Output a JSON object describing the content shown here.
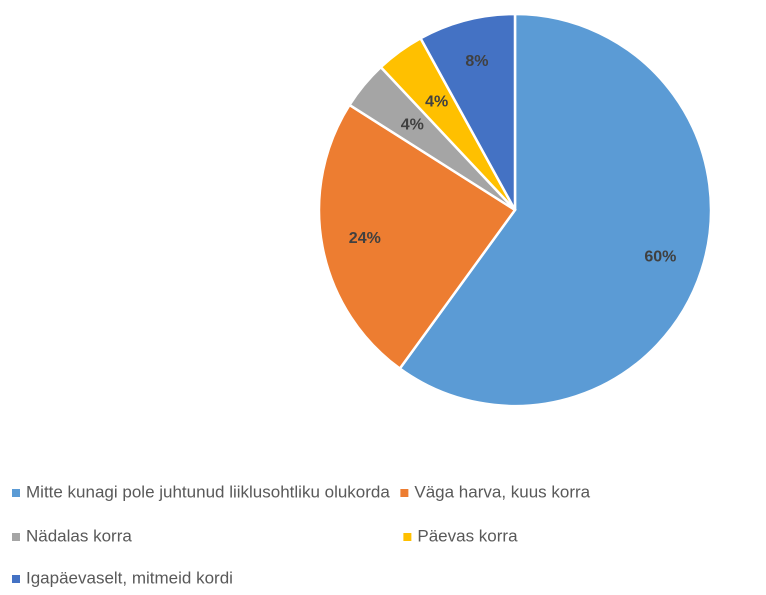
{
  "chart_data": {
    "type": "pie",
    "categories": [
      "Mitte kunagi pole juhtunud liiklusohtliku olukorda",
      "Väga harva, kuus korra",
      "Nädalas korra",
      "Päevas korra",
      "Igapäevaselt, mitmeid kordi"
    ],
    "values": [
      60,
      24,
      4,
      4,
      8
    ],
    "value_labels": [
      "60%",
      "24%",
      "4%",
      "4%",
      "8%"
    ],
    "colors": [
      "#5b9bd5",
      "#ed7d31",
      "#a5a5a5",
      "#ffc000",
      "#4472c4"
    ],
    "legend": "bottom"
  }
}
